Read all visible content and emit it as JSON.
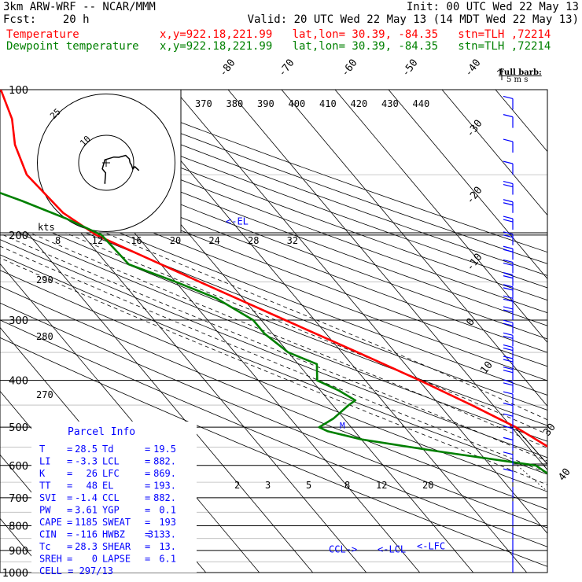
{
  "header": {
    "model": "3km ARW-WRF -- NCAR/MMM",
    "init": "Init: 00 UTC Wed 22 May 13",
    "fcst": "Fcst:    20 h",
    "valid": "Valid: 20 UTC Wed 22 May 13 (14 MDT Wed 22 May 13)",
    "temp_label": "Temperature",
    "temp_info": "x,y=922.18,221.99   lat,lon= 30.39, -84.35   stn=TLH ,72214",
    "dew_label": "Dewpoint temperature",
    "dew_info": "x,y=922.18,221.99   lat,lon= 30.39, -84.35   stn=TLH ,72214"
  },
  "colors": {
    "temperature": "#ff0000",
    "dewpoint": "#008000",
    "barbs": "#0000ff",
    "frame": "#000000",
    "parcel_text": "#0000ff"
  },
  "chart_data": {
    "type": "line",
    "subtype": "skew-T log-P sounding",
    "pressure_ticks": [
      "100",
      "200",
      "300",
      "400",
      "500",
      "600",
      "700",
      "800",
      "900",
      "1000"
    ],
    "pressure_levels": [
      100,
      200,
      300,
      400,
      500,
      600,
      700,
      800,
      900,
      1000
    ],
    "isotherm_labels": [
      "-80",
      "-70",
      "-60",
      "-50",
      "-40",
      "-30",
      "-20",
      "-10",
      "0",
      "10",
      "30",
      "40"
    ],
    "isotherm_values": [
      -80,
      -70,
      -60,
      -50,
      -40,
      -30,
      -20,
      -10,
      0,
      10,
      30,
      40
    ],
    "theta_labels": [
      "370",
      "380",
      "390",
      "400",
      "410",
      "420",
      "430",
      "440"
    ],
    "theta_values": [
      370,
      380,
      390,
      400,
      410,
      420,
      430,
      440
    ],
    "theta_side_labels": [
      "290",
      "280",
      "270"
    ],
    "theta_side_values": [
      290,
      280,
      270
    ],
    "mixing_ratio_labels": [
      "2",
      "3",
      "5",
      "8",
      "12",
      "20"
    ],
    "mixing_ratio_values": [
      2,
      3,
      5,
      8,
      12,
      20
    ],
    "series": [
      {
        "name": "Temperature",
        "color": "#ff0000",
        "p": [
          1000,
          950,
          920,
          900,
          870,
          850,
          800,
          750,
          700,
          650,
          600,
          550,
          500,
          450,
          400,
          350,
          300,
          250,
          200,
          180,
          150,
          130,
          115,
          100
        ],
        "t": [
          28.5,
          24.2,
          21.5,
          19.6,
          16.7,
          14.8,
          10.4,
          7.6,
          4.8,
          1.2,
          -2.6,
          -6.2,
          -9.2,
          -14.0,
          -19.8,
          -27.0,
          -35.5,
          -45.5,
          -57.5,
          -60.2,
          -61.0,
          -58.5,
          -55.0,
          -52.5
        ]
      },
      {
        "name": "Dewpoint temperature",
        "color": "#008000",
        "p": [
          1000,
          950,
          920,
          900,
          880,
          850,
          830,
          800,
          770,
          740,
          700,
          650,
          600,
          560,
          530,
          510,
          500,
          480,
          450,
          440,
          420,
          400,
          370,
          350,
          320,
          300,
          270,
          250,
          230,
          200,
          185,
          170,
          160,
          150,
          140,
          130,
          115,
          100
        ],
        "t": [
          19.5,
          18.8,
          19.5,
          19.6,
          16.0,
          13.0,
          10.0,
          7.0,
          2.0,
          -2.0,
          -5.5,
          -9.5,
          -11.5,
          -28.0,
          -40.0,
          -45.0,
          -46.0,
          -42.0,
          -37.0,
          -35.0,
          -36.5,
          -39.0,
          -36.5,
          -40.0,
          -41.5,
          -41.5,
          -45.0,
          -50.0,
          -56.0,
          -56.5,
          -60.5,
          -66.0,
          -70.5,
          -72.5,
          -73.0,
          -73.5,
          -75.0,
          -77.0
        ]
      }
    ],
    "markers": [
      {
        "text": "<-EL",
        "p": 193
      },
      {
        "text": "CCL->",
        "p": 882
      },
      {
        "text": "<-LCL",
        "p": 882
      },
      {
        "text": "<-LFC",
        "p": 869
      },
      {
        "text": "M",
        "p": 500
      }
    ],
    "hodograph": {
      "speed_unit": "kts",
      "ring_labels": [
        "10",
        "25"
      ],
      "ring_speeds": [
        10,
        25
      ],
      "axis_tick_labels": [
        "8",
        "12",
        "16",
        "20",
        "24",
        "28",
        "32"
      ],
      "axis_tick_values": [
        8,
        12,
        16,
        20,
        24,
        28,
        32
      ],
      "u_knots": [
        -0.2,
        -0.5,
        -0.2,
        -1.4,
        -0.5,
        2.8,
        4.6,
        7.1,
        8.4,
        8.7,
        9.2,
        9.7,
        10.4,
        11.9
      ],
      "v_knots": [
        -7.3,
        -7.4,
        -3.7,
        -2.2,
        1.1,
        2.1,
        2.0,
        2.7,
        1.4,
        0.0,
        -0.8,
        -2.3,
        -1.4,
        -2.8
      ]
    },
    "wind_barbs": {
      "title": "Full barb:",
      "subtitle": "5 m s",
      "barb_pressures": [
        110,
        120,
        135,
        150,
        165,
        180,
        195,
        210,
        225,
        240,
        255,
        270,
        285,
        300,
        320,
        340,
        360,
        380,
        400,
        425,
        450,
        475,
        500,
        530,
        560,
        600,
        650,
        700,
        750,
        800,
        850,
        900,
        950,
        1000
      ],
      "barb_counts": [
        1,
        1,
        1,
        1,
        2,
        2,
        2,
        2,
        2,
        2,
        2,
        2,
        2,
        2,
        2,
        2,
        2,
        2,
        2,
        2,
        1,
        1,
        1,
        1,
        1,
        1,
        1,
        0,
        0,
        0,
        0,
        0,
        0,
        0
      ]
    }
  },
  "parcel": {
    "title": "Parcel Info",
    "rows": [
      {
        "l1": "T",
        "v1": "28.5",
        "l2": "Td",
        "v2": "19.5"
      },
      {
        "l1": "LI",
        "v1": "-3.3",
        "l2": "LCL",
        "v2": "882."
      },
      {
        "l1": "K",
        "v1": "26",
        "l2": "LFC",
        "v2": "869."
      },
      {
        "l1": "TT",
        "v1": "48",
        "l2": "EL",
        "v2": "193."
      },
      {
        "l1": "SVI",
        "v1": "-1.4",
        "l2": "CCL",
        "v2": "882."
      },
      {
        "l1": "PW",
        "v1": "3.61",
        "l2": "YGP",
        "v2": "0.1"
      },
      {
        "l1": "CAPE",
        "v1": "1185",
        "l2": "SWEAT",
        "v2": "193"
      },
      {
        "l1": "CIN",
        "v1": "-116",
        "l2": "HWBZ",
        "v2": "3133."
      },
      {
        "l1": "Tc",
        "v1": "28.3",
        "l2": "SHEAR",
        "v2": "13."
      },
      {
        "l1": "SREH",
        "v1": "0",
        "l2": "LAPSE",
        "v2": "6.1"
      }
    ],
    "cell": "CELL = 297/13"
  }
}
